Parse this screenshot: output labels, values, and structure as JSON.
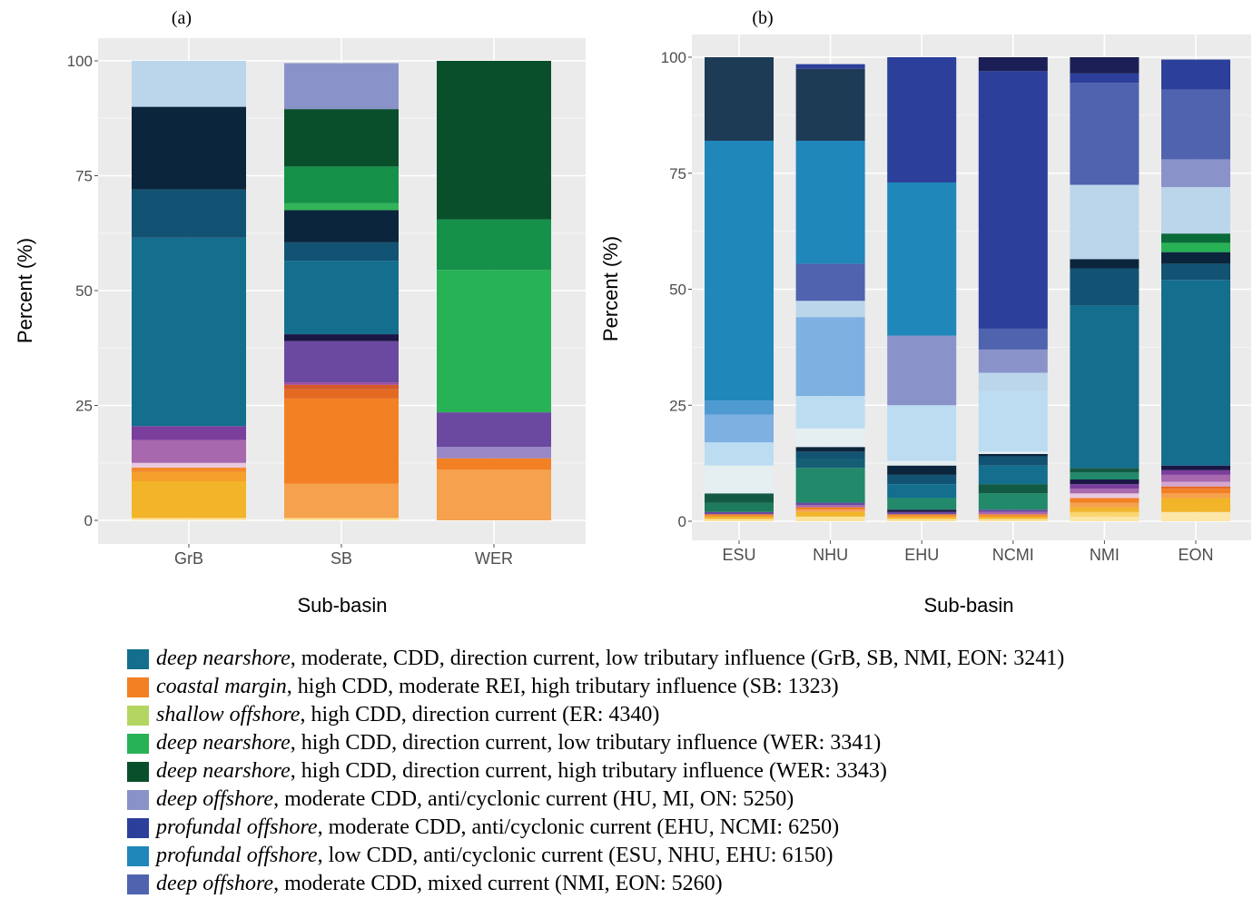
{
  "chart_data": [
    {
      "type": "bar",
      "stacked": true,
      "panel_label": "(a)",
      "xlabel": "Sub-basin",
      "ylabel": "Percent (%)",
      "ylim": [
        0,
        100
      ],
      "yticks": [
        0,
        25,
        50,
        75,
        100
      ],
      "grid": true,
      "categories": [
        "GrB",
        "SB",
        "WER"
      ],
      "bars": [
        {
          "category": "GrB",
          "segments": [
            {
              "value": 0.5,
              "color": "#fce6a8"
            },
            {
              "value": 8,
              "color": "#f2b429"
            },
            {
              "value": 2,
              "color": "#f5a02b"
            },
            {
              "value": 1,
              "color": "#f38a2a"
            },
            {
              "value": 1,
              "color": "#e9c8e0"
            },
            {
              "value": 5,
              "color": "#a768ad"
            },
            {
              "value": 3,
              "color": "#7a3e9c"
            },
            {
              "value": 41,
              "color": "#146e8e"
            },
            {
              "value": 10.5,
              "color": "#125373"
            },
            {
              "value": 18,
              "color": "#0b253d"
            },
            {
              "value": 10,
              "color": "#bbd6eb"
            }
          ]
        },
        {
          "category": "SB",
          "segments": [
            {
              "value": 0.5,
              "color": "#fbe29b"
            },
            {
              "value": 7.5,
              "color": "#f5a14e"
            },
            {
              "value": 18.5,
              "color": "#f38023"
            },
            {
              "value": 2,
              "color": "#e46a24"
            },
            {
              "value": 1,
              "color": "#d55a2a"
            },
            {
              "value": 0.5,
              "color": "#9c4ba3"
            },
            {
              "value": 9,
              "color": "#6b49a0"
            },
            {
              "value": 1.5,
              "color": "#1a1645"
            },
            {
              "value": 16,
              "color": "#146e8e"
            },
            {
              "value": 4,
              "color": "#125373"
            },
            {
              "value": 7,
              "color": "#0b253d"
            },
            {
              "value": 1.5,
              "color": "#33b45a"
            },
            {
              "value": 8,
              "color": "#15914a"
            },
            {
              "value": 12.5,
              "color": "#0a4f2b"
            },
            {
              "value": 10,
              "color": "#8a93c9"
            }
          ]
        },
        {
          "category": "WER",
          "segments": [
            {
              "value": 11,
              "color": "#f5a14e"
            },
            {
              "value": 2.5,
              "color": "#f38023"
            },
            {
              "value": 2.5,
              "color": "#9a87c6"
            },
            {
              "value": 7.5,
              "color": "#6b49a0"
            },
            {
              "value": 31,
              "color": "#28b256"
            },
            {
              "value": 11,
              "color": "#15914a"
            },
            {
              "value": 34.5,
              "color": "#0a4f2b"
            }
          ]
        }
      ]
    },
    {
      "type": "bar",
      "stacked": true,
      "panel_label": "(b)",
      "xlabel": "Sub-basin",
      "ylabel": "Percent (%)",
      "ylim": [
        0,
        100
      ],
      "yticks": [
        0,
        25,
        50,
        75,
        100
      ],
      "grid": true,
      "categories": [
        "ESU",
        "NHU",
        "EHU",
        "NCMI",
        "NMI",
        "EON"
      ],
      "bars": [
        {
          "category": "ESU",
          "segments": [
            {
              "value": 0.5,
              "color": "#fbe29b"
            },
            {
              "value": 0.5,
              "color": "#f2b429"
            },
            {
              "value": 0.5,
              "color": "#f38a2a"
            },
            {
              "value": 0.5,
              "color": "#6b49a0"
            },
            {
              "value": 2,
              "color": "#1e7a5c"
            },
            {
              "value": 2,
              "color": "#135a45"
            },
            {
              "value": 6,
              "color": "#e5eff1"
            },
            {
              "value": 5,
              "color": "#bcdcf2"
            },
            {
              "value": 6,
              "color": "#7eb1e1"
            },
            {
              "value": 3,
              "color": "#4f9bd1"
            },
            {
              "value": 56,
              "color": "#1f87b9"
            },
            {
              "value": 18,
              "color": "#1e3b55"
            }
          ]
        },
        {
          "category": "NHU",
          "segments": [
            {
              "value": 1,
              "color": "#fbe29b"
            },
            {
              "value": 1,
              "color": "#f2b429"
            },
            {
              "value": 0.5,
              "color": "#f5a14e"
            },
            {
              "value": 0.5,
              "color": "#f38023"
            },
            {
              "value": 0.5,
              "color": "#a768ad"
            },
            {
              "value": 0.5,
              "color": "#6b49a0"
            },
            {
              "value": 7.5,
              "color": "#22896a"
            },
            {
              "value": 2,
              "color": "#155e74"
            },
            {
              "value": 1.5,
              "color": "#125373"
            },
            {
              "value": 1,
              "color": "#0b253d"
            },
            {
              "value": 4,
              "color": "#e5eff1"
            },
            {
              "value": 7,
              "color": "#bcdcf2"
            },
            {
              "value": 17,
              "color": "#7eb1e1"
            },
            {
              "value": 3.5,
              "color": "#bbd6eb"
            },
            {
              "value": 8,
              "color": "#4f63ae"
            },
            {
              "value": 26.5,
              "color": "#1f87b9"
            },
            {
              "value": 15.5,
              "color": "#1e3b55"
            },
            {
              "value": 1,
              "color": "#2b3f9b"
            }
          ]
        },
        {
          "category": "EHU",
          "segments": [
            {
              "value": 0.5,
              "color": "#fbe29b"
            },
            {
              "value": 0.5,
              "color": "#f2b429"
            },
            {
              "value": 0.5,
              "color": "#f38a2a"
            },
            {
              "value": 0.5,
              "color": "#6b49a0"
            },
            {
              "value": 0.5,
              "color": "#1a1645"
            },
            {
              "value": 2.5,
              "color": "#22896a"
            },
            {
              "value": 3,
              "color": "#146e8e"
            },
            {
              "value": 2,
              "color": "#125373"
            },
            {
              "value": 2,
              "color": "#0b253d"
            },
            {
              "value": 1,
              "color": "#e5eff1"
            },
            {
              "value": 12,
              "color": "#bcdcf2"
            },
            {
              "value": 15,
              "color": "#8a93c9"
            },
            {
              "value": 33,
              "color": "#1f87b9"
            },
            {
              "value": 27,
              "color": "#2b3f9b"
            }
          ]
        },
        {
          "category": "NCMI",
          "segments": [
            {
              "value": 0.5,
              "color": "#fbe29b"
            },
            {
              "value": 0.5,
              "color": "#f2b429"
            },
            {
              "value": 0.5,
              "color": "#f38a2a"
            },
            {
              "value": 0.5,
              "color": "#a768ad"
            },
            {
              "value": 0.5,
              "color": "#6b49a0"
            },
            {
              "value": 3.5,
              "color": "#22896a"
            },
            {
              "value": 2,
              "color": "#135a45"
            },
            {
              "value": 4,
              "color": "#146e8e"
            },
            {
              "value": 2,
              "color": "#125373"
            },
            {
              "value": 0.5,
              "color": "#0b253d"
            },
            {
              "value": 0.5,
              "color": "#e5eff1"
            },
            {
              "value": 13,
              "color": "#bcdcf2"
            },
            {
              "value": 4,
              "color": "#bbd6eb"
            },
            {
              "value": 5,
              "color": "#8a93c9"
            },
            {
              "value": 4.5,
              "color": "#4f63ae"
            },
            {
              "value": 55.5,
              "color": "#2b3f9b"
            },
            {
              "value": 3,
              "color": "#1c1f55"
            }
          ]
        },
        {
          "category": "NMI",
          "segments": [
            {
              "value": 1,
              "color": "#fce6a8"
            },
            {
              "value": 1,
              "color": "#fbd46c"
            },
            {
              "value": 1,
              "color": "#f2b429"
            },
            {
              "value": 1,
              "color": "#f5a14e"
            },
            {
              "value": 1,
              "color": "#f38023"
            },
            {
              "value": 1,
              "color": "#e9c8e0"
            },
            {
              "value": 1,
              "color": "#a768ad"
            },
            {
              "value": 1,
              "color": "#7a3e9c"
            },
            {
              "value": 1,
              "color": "#1a1645"
            },
            {
              "value": 1.5,
              "color": "#22896a"
            },
            {
              "value": 1,
              "color": "#135a45"
            },
            {
              "value": 35,
              "color": "#146e8e"
            },
            {
              "value": 8,
              "color": "#125373"
            },
            {
              "value": 2,
              "color": "#0b253d"
            },
            {
              "value": 16,
              "color": "#bbd6eb"
            },
            {
              "value": 22,
              "color": "#4f63ae"
            },
            {
              "value": 2,
              "color": "#2b3f9b"
            },
            {
              "value": 3.5,
              "color": "#1c1f55"
            }
          ]
        },
        {
          "category": "EON",
          "segments": [
            {
              "value": 2,
              "color": "#fce6a8"
            },
            {
              "value": 3,
              "color": "#f2b429"
            },
            {
              "value": 1,
              "color": "#f5a14e"
            },
            {
              "value": 1,
              "color": "#f38023"
            },
            {
              "value": 0.5,
              "color": "#e46a24"
            },
            {
              "value": 1,
              "color": "#d5a6cf"
            },
            {
              "value": 1.5,
              "color": "#a768ad"
            },
            {
              "value": 1,
              "color": "#7a3e9c"
            },
            {
              "value": 1,
              "color": "#1a1645"
            },
            {
              "value": 40,
              "color": "#146e8e"
            },
            {
              "value": 3.5,
              "color": "#125373"
            },
            {
              "value": 2.5,
              "color": "#0b253d"
            },
            {
              "value": 2,
              "color": "#28b256"
            },
            {
              "value": 2,
              "color": "#0a6b3a"
            },
            {
              "value": 10,
              "color": "#bbd6eb"
            },
            {
              "value": 6,
              "color": "#8a93c9"
            },
            {
              "value": 15,
              "color": "#4f63ae"
            },
            {
              "value": 6.5,
              "color": "#2b3f9b"
            }
          ]
        }
      ]
    }
  ],
  "legend": [
    {
      "color": "#146e8e",
      "italic": "deep nearshore",
      "rest": ", moderate, CDD, direction current, low tributary influence (GrB, SB, NMI, EON: 3241)"
    },
    {
      "color": "#f38023",
      "italic": "coastal margin",
      "rest": ", high CDD, moderate REI, high tributary influence (SB: 1323)"
    },
    {
      "color": "#b3d663",
      "italic": "shallow offshore",
      "rest": ", high CDD, direction current (ER: 4340)"
    },
    {
      "color": "#28b256",
      "italic": "deep nearshore",
      "rest": ", high CDD, direction current, low tributary influence (WER: 3341)"
    },
    {
      "color": "#0a4f2b",
      "italic": "deep nearshore",
      "rest": ", high CDD, direction current, high tributary influence (WER: 3343)"
    },
    {
      "color": "#8a93c9",
      "italic": "deep offshore",
      "rest": ", moderate CDD, anti/cyclonic current (HU, MI, ON: 5250)"
    },
    {
      "color": "#2b3f9b",
      "italic": "profundal offshore",
      "rest": ", moderate CDD, anti/cyclonic current (EHU, NCMI: 6250)"
    },
    {
      "color": "#1f87b9",
      "italic": "profundal offshore",
      "rest": ", low CDD, anti/cyclonic current (ESU, NHU, EHU: 6150)"
    },
    {
      "color": "#4f63ae",
      "italic": "deep offshore",
      "rest": ", moderate CDD, mixed current (NMI, EON: 5260)"
    }
  ]
}
